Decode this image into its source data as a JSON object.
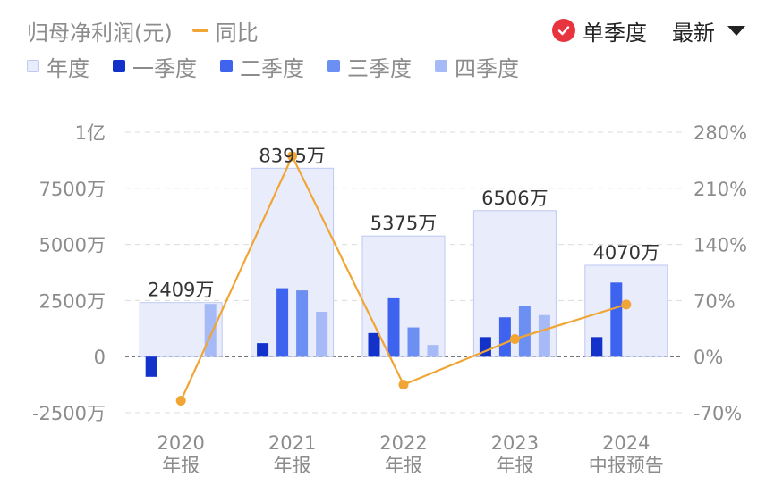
{
  "header": {
    "title": "归母净利润(元)",
    "yoy_label": "同比",
    "season_toggle": "单季度",
    "latest_label": "最新"
  },
  "colors": {
    "annual": "#e9ecfb",
    "annual_border": "#bfc9f3",
    "q1": "#1232c9",
    "q2": "#3e63ee",
    "q3": "#6c8ff3",
    "q4": "#a7baf8",
    "yoy": "#f0a534",
    "check_red": "#e8343e"
  },
  "icons": {
    "check": "check-circle-icon",
    "dropdown": "caret-down-icon"
  },
  "chart_data": {
    "type": "bar",
    "categories": [
      {
        "year": "2020",
        "period": "年报"
      },
      {
        "year": "2021",
        "period": "年报"
      },
      {
        "year": "2022",
        "period": "年报"
      },
      {
        "year": "2023",
        "period": "年报"
      },
      {
        "year": "2024",
        "period": "中报预告"
      }
    ],
    "series": [
      {
        "name": "年度",
        "values": [
          2409,
          8395,
          5375,
          6506,
          4070
        ]
      },
      {
        "name": "一季度",
        "values": [
          -900,
          600,
          1050,
          870,
          870
        ]
      },
      {
        "name": "二季度",
        "values": [
          0,
          3050,
          2600,
          1750,
          3300
        ]
      },
      {
        "name": "三季度",
        "values": [
          0,
          2950,
          1300,
          2250,
          null
        ]
      },
      {
        "name": "四季度",
        "values": [
          2350,
          2000,
          520,
          1850,
          null
        ]
      }
    ],
    "annual_labels": [
      "2409万",
      "8395万",
      "5375万",
      "6506万",
      "4070万"
    ],
    "yoy": {
      "name": "同比",
      "values": [
        -55,
        250,
        -35,
        22,
        65
      ]
    },
    "y_left": {
      "unit": "万",
      "ylim": [
        -2500,
        10000
      ],
      "ticks": [
        -2500,
        0,
        2500,
        5000,
        7500,
        10000
      ],
      "tick_labels": [
        "-2500万",
        "0",
        "2500万",
        "5000万",
        "7500万",
        "1亿"
      ]
    },
    "y_right": {
      "unit": "%",
      "ylim": [
        -70,
        280
      ],
      "ticks": [
        -70,
        0,
        70,
        140,
        210,
        280
      ],
      "tick_labels": [
        "-70%",
        "0%",
        "70%",
        "140%",
        "210%",
        "280%"
      ]
    },
    "grid": true,
    "legend_position": "top-left"
  }
}
